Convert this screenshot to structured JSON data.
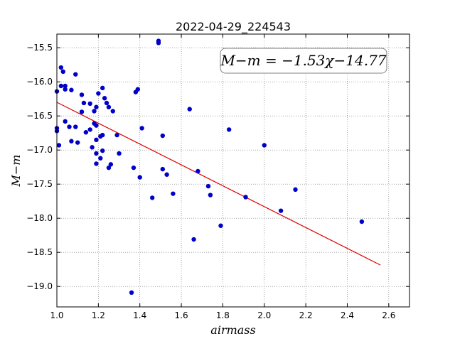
{
  "chart_data": {
    "type": "scatter",
    "title": "2022-04-29_224543",
    "xlabel": "airmass",
    "ylabel": "M−m",
    "xlim": [
      1.0,
      2.7
    ],
    "ylim": [
      -19.3,
      -15.3
    ],
    "y_inverted": true,
    "grid": true,
    "xticks": [
      "1.0",
      "1.2",
      "1.4",
      "1.6",
      "1.8",
      "2.0",
      "2.2",
      "2.4",
      "2.6"
    ],
    "yticks": [
      "−15.5",
      "−16.0",
      "−16.5",
      "−17.0",
      "−17.5",
      "−18.0",
      "−18.5",
      "−19.0"
    ],
    "annotation": "M−m = −1.53χ−14.77",
    "fit_line": {
      "slope": -1.53,
      "intercept": -14.77,
      "x_range": [
        1.0,
        2.56
      ],
      "color": "#e00000"
    },
    "point_color": "#0000c8",
    "series": [
      {
        "points": [
          [
            1.0,
            -16.68
          ],
          [
            1.0,
            -16.72
          ],
          [
            1.0,
            -16.14
          ],
          [
            1.02,
            -15.79
          ],
          [
            1.02,
            -16.06
          ],
          [
            1.03,
            -15.85
          ],
          [
            1.04,
            -16.06
          ],
          [
            1.04,
            -16.11
          ],
          [
            1.01,
            -16.93
          ],
          [
            1.04,
            -16.58
          ],
          [
            1.06,
            -16.66
          ],
          [
            1.07,
            -16.12
          ],
          [
            1.07,
            -16.87
          ],
          [
            1.09,
            -15.89
          ],
          [
            1.09,
            -16.66
          ],
          [
            1.1,
            -16.89
          ],
          [
            1.12,
            -16.19
          ],
          [
            1.12,
            -16.44
          ],
          [
            1.13,
            -16.31
          ],
          [
            1.14,
            -16.74
          ],
          [
            1.16,
            -16.7
          ],
          [
            1.16,
            -16.32
          ],
          [
            1.17,
            -16.96
          ],
          [
            1.18,
            -16.43
          ],
          [
            1.18,
            -16.61
          ],
          [
            1.19,
            -16.37
          ],
          [
            1.19,
            -16.64
          ],
          [
            1.19,
            -16.85
          ],
          [
            1.19,
            -17.05
          ],
          [
            1.19,
            -17.2
          ],
          [
            1.2,
            -16.17
          ],
          [
            1.21,
            -16.8
          ],
          [
            1.21,
            -17.12
          ],
          [
            1.22,
            -16.09
          ],
          [
            1.22,
            -16.78
          ],
          [
            1.22,
            -17.01
          ],
          [
            1.23,
            -16.24
          ],
          [
            1.24,
            -16.31
          ],
          [
            1.25,
            -16.37
          ],
          [
            1.25,
            -17.26
          ],
          [
            1.26,
            -17.21
          ],
          [
            1.27,
            -16.43
          ],
          [
            1.29,
            -16.78
          ],
          [
            1.3,
            -17.05
          ],
          [
            1.36,
            -19.09
          ],
          [
            1.37,
            -17.26
          ],
          [
            1.38,
            -16.15
          ],
          [
            1.39,
            -16.11
          ],
          [
            1.4,
            -17.4
          ],
          [
            1.41,
            -16.68
          ],
          [
            1.46,
            -17.7
          ],
          [
            1.49,
            -15.4
          ],
          [
            1.49,
            -15.43
          ],
          [
            1.51,
            -16.79
          ],
          [
            1.51,
            -17.28
          ],
          [
            1.53,
            -17.36
          ],
          [
            1.56,
            -17.64
          ],
          [
            1.64,
            -16.4
          ],
          [
            1.66,
            -18.31
          ],
          [
            1.68,
            -17.31
          ],
          [
            1.73,
            -17.53
          ],
          [
            1.74,
            -17.66
          ],
          [
            1.79,
            -18.11
          ],
          [
            1.83,
            -16.7
          ],
          [
            1.91,
            -17.69
          ],
          [
            2.0,
            -16.93
          ],
          [
            2.08,
            -17.89
          ],
          [
            2.15,
            -17.58
          ],
          [
            2.47,
            -18.05
          ]
        ]
      }
    ]
  }
}
